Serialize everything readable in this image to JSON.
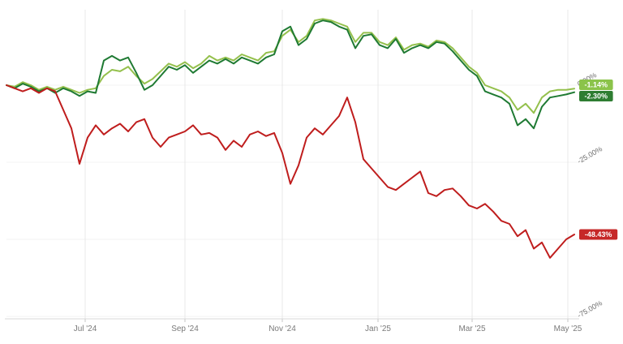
{
  "chart": {
    "background": "#ffffff",
    "grid_color": "#e8e8e8",
    "hgrid_color": "#f3f3f3",
    "axis_color": "#d9d9d9",
    "tick_color": "#c4c4c4",
    "x_label_color": "#7a7a7a",
    "y_label_color": "#6f6f6f"
  },
  "chart_data": {
    "type": "line",
    "title": "",
    "xlabel": "",
    "ylabel": "",
    "grid": "vertical-month-gridlines",
    "legend_position": "none",
    "y_axis_side": "right",
    "y_axis_range": [
      -75,
      25
    ],
    "y_ticks": [
      {
        "label": "0.00%",
        "value": 0
      },
      {
        "label": "-25.00%",
        "value": -25
      },
      {
        "label": "-75.00%",
        "value": -75
      }
    ],
    "x_tick_labels": [
      "Jul '24",
      "Sep '24",
      "Nov '24",
      "Jan '25",
      "Mar '25",
      "May '25"
    ],
    "x_tick_positions": [
      9.7,
      22,
      34,
      45.8,
      57.4,
      69.2
    ],
    "series": [
      {
        "name": "light-green-series",
        "color": "#94c04c",
        "badge_color": "#8bc34a",
        "end_label": "-1.14%",
        "values": [
          0,
          -0.5,
          1,
          0,
          -1.5,
          -0.5,
          -1.5,
          -0.5,
          -1.5,
          -2.5,
          -1.5,
          -1,
          3,
          5,
          4.5,
          6,
          3,
          0.5,
          2,
          4.5,
          7,
          6,
          7.5,
          5.5,
          7,
          9.5,
          8,
          9,
          8,
          10,
          9,
          8,
          10.5,
          11,
          16,
          18,
          14,
          16,
          21,
          21.5,
          21,
          20,
          19,
          14,
          17,
          17,
          14,
          13,
          15.5,
          11.5,
          13,
          13.5,
          12.5,
          14.5,
          14,
          12,
          9,
          6,
          4,
          0,
          -1,
          -2,
          -4,
          -8,
          -6,
          -9,
          -4,
          -2,
          -1.5,
          -1.5,
          -1.14
        ]
      },
      {
        "name": "dark-green-series",
        "color": "#1f7a33",
        "badge_color": "#2e7d32",
        "end_label": "-2.30%",
        "values": [
          0,
          -1,
          0.5,
          -0.5,
          -2,
          -1,
          -2.5,
          -1,
          -2,
          -3.5,
          -2,
          -2.5,
          8,
          9.5,
          8,
          9,
          4,
          -1.5,
          0,
          3,
          6,
          5,
          6.5,
          4,
          6,
          8,
          7,
          8.5,
          7,
          9,
          8,
          7,
          9,
          10,
          17.5,
          19,
          13,
          15,
          20,
          21,
          20.5,
          19,
          18,
          12,
          16,
          16.5,
          13,
          12,
          15,
          10.5,
          12,
          13,
          12,
          14,
          13.5,
          11,
          8,
          5,
          3,
          -2,
          -3,
          -4,
          -6,
          -13,
          -11,
          -14,
          -7,
          -4,
          -3.5,
          -3,
          -2.3
        ]
      },
      {
        "name": "red-series",
        "color": "#bf1d1d",
        "badge_color": "#c62828",
        "end_label": "-48.43%",
        "values": [
          0,
          -1,
          -2,
          -1,
          -2.5,
          -1,
          -2,
          -8,
          -14,
          -25.5,
          -17,
          -13,
          -16,
          -14,
          -12.5,
          -15,
          -12,
          -11,
          -17,
          -20,
          -17,
          -16,
          -15,
          -13,
          -16,
          -15.5,
          -17,
          -21,
          -18,
          -20,
          -16,
          -15,
          -16.5,
          -15.5,
          -22,
          -32,
          -26,
          -17,
          -14,
          -16,
          -13,
          -10,
          -4,
          -12,
          -24,
          -27,
          -30,
          -33,
          -34,
          -32,
          -30,
          -28,
          -35,
          -36,
          -34,
          -33.5,
          -36,
          -39,
          -40,
          -38.5,
          -41,
          -44,
          -45,
          -49,
          -47,
          -53,
          -51,
          -56,
          -53,
          -50,
          -48.43
        ]
      }
    ]
  }
}
